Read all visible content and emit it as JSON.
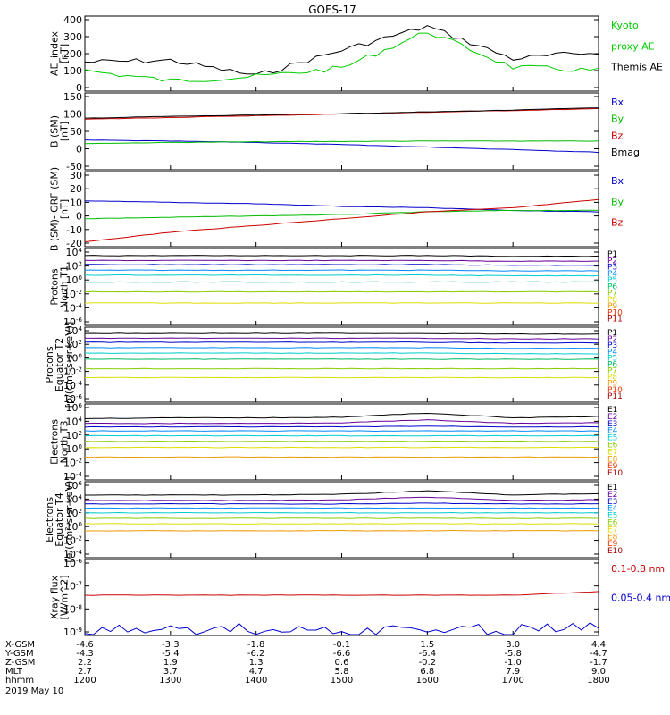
{
  "title": "GOES-17",
  "time_axis": {
    "ticks": [
      "1200",
      "1300",
      "1400",
      "1500",
      "1600",
      "1700",
      "1800"
    ],
    "date": "2019 May 10",
    "rows": [
      {
        "label": "X-GSM",
        "values": [
          "-4.6",
          "-3.3",
          "-1.8",
          "-0.1",
          "1.5",
          "3.0",
          "4.4"
        ]
      },
      {
        "label": "Y-GSM",
        "values": [
          "-4.3",
          "-5.4",
          "-6.2",
          "-6.6",
          "-6.4",
          "-5.8",
          "-4.7"
        ]
      },
      {
        "label": "Z-GSM",
        "values": [
          "2.2",
          "1.9",
          "1.3",
          "0.6",
          "-0.2",
          "-1.0",
          "-1.7"
        ]
      },
      {
        "label": "MLT",
        "values": [
          "2.7",
          "3.7",
          "4.7",
          "5.8",
          "6.8",
          "7.9",
          "9.0"
        ]
      },
      {
        "label": "hhmm",
        "values": [
          "1200",
          "1300",
          "1400",
          "1500",
          "1600",
          "1700",
          "1800"
        ]
      }
    ]
  },
  "panels": [
    {
      "ylabel": [
        "AE_index",
        "[nT]"
      ],
      "ticks": [
        "400",
        "300",
        "200",
        "100",
        "0"
      ],
      "legend": [
        {
          "text": "Kyoto",
          "color": "#00cc00"
        },
        {
          "text": "proxy AE",
          "color": "#00cc00"
        },
        {
          "text": "Themis AE",
          "color": "#000000"
        }
      ]
    },
    {
      "ylabel": [
        "B (SM)",
        "[nT]"
      ],
      "ticks": [
        "150",
        "100",
        "50",
        "0",
        "-50"
      ],
      "legend": [
        {
          "text": "Bx",
          "color": "#0000cc"
        },
        {
          "text": "By",
          "color": "#00bb00"
        },
        {
          "text": "Bz",
          "color": "#cc0000"
        },
        {
          "text": "Bmag",
          "color": "#000000"
        }
      ]
    },
    {
      "ylabel": [
        "B (SM)-IGRF (SM)",
        "[nT]"
      ],
      "ticks": [
        "30",
        "20",
        "10",
        "0",
        "-10",
        "-20"
      ],
      "legend": [
        {
          "text": "Bx",
          "color": "#0000cc"
        },
        {
          "text": "By",
          "color": "#00bb00"
        },
        {
          "text": "Bz",
          "color": "#cc0000"
        }
      ]
    },
    {
      "ylabel": [
        "Protons",
        "North T1"
      ],
      "ticks": [
        "10^4",
        "10^2",
        "10^0",
        "10^-2",
        "10^-4",
        "10^-6"
      ],
      "legend": [
        {
          "text": "P1",
          "color": "#000000"
        },
        {
          "text": "P2",
          "color": "#660099"
        },
        {
          "text": "P3",
          "color": "#0000cc"
        },
        {
          "text": "P4",
          "color": "#0088ff"
        },
        {
          "text": "P5",
          "color": "#00cccc"
        },
        {
          "text": "P6",
          "color": "#00bb66"
        },
        {
          "text": "P7",
          "color": "#88cc00"
        },
        {
          "text": "P8",
          "color": "#dddd00"
        },
        {
          "text": "P9",
          "color": "#ee9900"
        },
        {
          "text": "P10",
          "color": "#ee3300"
        },
        {
          "text": "P11",
          "color": "#aa0000"
        }
      ]
    },
    {
      "ylabel": [
        "Protons",
        "Equator T2",
        "[p/(cm²-s-sr-keV)]"
      ],
      "ticks": [
        "10^4",
        "10^2",
        "10^0",
        "10^-2",
        "10^-4",
        "10^-6"
      ],
      "legend": [
        {
          "text": "P1",
          "color": "#000000"
        },
        {
          "text": "P2",
          "color": "#660099"
        },
        {
          "text": "P3",
          "color": "#0000cc"
        },
        {
          "text": "P4",
          "color": "#0088ff"
        },
        {
          "text": "P5",
          "color": "#00cccc"
        },
        {
          "text": "P6",
          "color": "#00bb66"
        },
        {
          "text": "P7",
          "color": "#88cc00"
        },
        {
          "text": "P8",
          "color": "#dddd00"
        },
        {
          "text": "P9",
          "color": "#ee9900"
        },
        {
          "text": "P10",
          "color": "#ee3300"
        },
        {
          "text": "P11",
          "color": "#aa0000"
        }
      ]
    },
    {
      "ylabel": [
        "Electrons",
        "North T3"
      ],
      "ticks": [
        "10^6",
        "10^4",
        "10^2",
        "10^0",
        "10^-2",
        "10^-4"
      ],
      "legend": [
        {
          "text": "E1",
          "color": "#000000"
        },
        {
          "text": "E2",
          "color": "#660099"
        },
        {
          "text": "E3",
          "color": "#0000cc"
        },
        {
          "text": "E4",
          "color": "#0088ff"
        },
        {
          "text": "E5",
          "color": "#00cccc"
        },
        {
          "text": "E6",
          "color": "#88cc00"
        },
        {
          "text": "E7",
          "color": "#dddd00"
        },
        {
          "text": "E8",
          "color": "#ee9900"
        },
        {
          "text": "E9",
          "color": "#ee3300"
        },
        {
          "text": "E10",
          "color": "#aa0000"
        }
      ]
    },
    {
      "ylabel": [
        "Electrons",
        "Equator T4",
        "[e/(cm²-s-sr-keV)]"
      ],
      "ticks": [
        "10^6",
        "10^4",
        "10^2",
        "10^0",
        "10^-2",
        "10^-4"
      ],
      "legend": [
        {
          "text": "E1",
          "color": "#000000"
        },
        {
          "text": "E2",
          "color": "#660099"
        },
        {
          "text": "E3",
          "color": "#0000cc"
        },
        {
          "text": "E4",
          "color": "#0088ff"
        },
        {
          "text": "E5",
          "color": "#00cccc"
        },
        {
          "text": "E6",
          "color": "#88cc00"
        },
        {
          "text": "E7",
          "color": "#dddd00"
        },
        {
          "text": "E8",
          "color": "#ee9900"
        },
        {
          "text": "E9",
          "color": "#ee3300"
        },
        {
          "text": "E10",
          "color": "#aa0000"
        }
      ]
    },
    {
      "ylabel": [
        "Xray flux",
        "[W/m^2]"
      ],
      "ticks": [
        "10^-6",
        "10^-7",
        "10^-8",
        "10^-9"
      ],
      "legend": [
        {
          "text": "0.1-0.8 nm",
          "color": "#cc0000"
        },
        {
          "text": "0.05-0.4 nm",
          "color": "#0000cc"
        }
      ]
    }
  ],
  "chart_data": [
    {
      "type": "line",
      "x": [
        "1200",
        "1300",
        "1400",
        "1500",
        "1600",
        "1700",
        "1800"
      ],
      "ylabel": "AE_index [nT]",
      "ylim": [
        0,
        400
      ],
      "series": [
        {
          "name": "Themis AE",
          "values": [
            150,
            160,
            70,
            220,
            360,
            170,
            210
          ]
        },
        {
          "name": "Kyoto proxy AE",
          "values": [
            100,
            40,
            65,
            115,
            330,
            120,
            100
          ]
        }
      ]
    },
    {
      "type": "line",
      "x": [
        "1200",
        "1300",
        "1400",
        "1500",
        "1600",
        "1700",
        "1800"
      ],
      "ylabel": "B (SM) [nT]",
      "ylim": [
        -50,
        150
      ],
      "series": [
        {
          "name": "Bx",
          "values": [
            25,
            22,
            18,
            12,
            5,
            -2,
            -10
          ]
        },
        {
          "name": "By",
          "values": [
            15,
            18,
            20,
            21,
            22,
            22,
            22
          ]
        },
        {
          "name": "Bz",
          "values": [
            85,
            90,
            95,
            100,
            105,
            110,
            115
          ]
        },
        {
          "name": "Bmag",
          "values": [
            88,
            93,
            97,
            101,
            106,
            111,
            118
          ]
        }
      ]
    },
    {
      "type": "line",
      "x": [
        "1200",
        "1300",
        "1400",
        "1500",
        "1600",
        "1700",
        "1800"
      ],
      "ylabel": "B (SM)-IGRF (SM) [nT]",
      "ylim": [
        -20,
        30
      ],
      "series": [
        {
          "name": "Bx",
          "values": [
            11,
            10,
            9,
            7,
            6,
            4,
            3
          ]
        },
        {
          "name": "By",
          "values": [
            -2,
            -1,
            0,
            1,
            3,
            4,
            4
          ]
        },
        {
          "name": "Bz",
          "values": [
            -19,
            -12,
            -7,
            -2,
            3,
            6,
            12
          ]
        }
      ]
    },
    {
      "type": "line",
      "x": [
        "1200",
        "1300",
        "1400",
        "1500",
        "1600",
        "1700",
        "1800"
      ],
      "ylabel": "Protons North T1",
      "ylim": [
        "10^-6",
        "10^4"
      ],
      "log": true,
      "series": [
        {
          "name": "P1",
          "values": [
            3.5,
            3.5,
            3.5,
            3.5,
            3.5,
            3.4,
            3.4
          ]
        },
        {
          "name": "P2",
          "values": [
            2.8,
            2.8,
            2.8,
            2.8,
            2.8,
            2.7,
            2.7
          ]
        },
        {
          "name": "P3",
          "values": [
            2.2,
            2.2,
            2.2,
            2.2,
            2.2,
            2.1,
            2.1
          ]
        },
        {
          "name": "P4",
          "values": [
            1.4,
            1.4,
            1.4,
            1.4,
            1.4,
            1.3,
            1.3
          ]
        },
        {
          "name": "P5",
          "values": [
            0.7,
            0.7,
            0.7,
            0.7,
            0.7,
            0.6,
            0.6
          ]
        },
        {
          "name": "P6",
          "values": [
            -0.3,
            -0.3,
            -0.3,
            -0.3,
            -0.3,
            -0.3,
            -0.3
          ]
        },
        {
          "name": "P7",
          "values": [
            -1.7,
            -1.7,
            -1.7,
            -1.7,
            -1.7,
            -1.7,
            -1.7
          ]
        },
        {
          "name": "P8",
          "values": [
            -3.3,
            -3.3,
            -3.3,
            -3.3,
            -3.3,
            -3.3,
            -3.3
          ]
        }
      ]
    },
    {
      "type": "line",
      "x": [
        "1200",
        "1300",
        "1400",
        "1500",
        "1600",
        "1700",
        "1800"
      ],
      "ylabel": "Protons Equator T2",
      "ylim": [
        "10^-6",
        "10^4"
      ],
      "log": true,
      "series": [
        {
          "name": "P1",
          "values": [
            3.6,
            3.6,
            3.6,
            3.6,
            3.6,
            3.5,
            3.5
          ]
        },
        {
          "name": "P2",
          "values": [
            2.9,
            2.9,
            2.9,
            2.9,
            2.9,
            2.8,
            2.8
          ]
        },
        {
          "name": "P3",
          "values": [
            2.3,
            2.3,
            2.3,
            2.3,
            2.3,
            2.2,
            2.2
          ]
        },
        {
          "name": "P4",
          "values": [
            1.5,
            1.5,
            1.5,
            1.5,
            1.5,
            1.4,
            1.4
          ]
        },
        {
          "name": "P5",
          "values": [
            0.7,
            0.7,
            0.7,
            0.7,
            0.7,
            0.6,
            0.6
          ]
        },
        {
          "name": "P6",
          "values": [
            -0.2,
            -0.2,
            -0.2,
            -0.2,
            -0.2,
            -0.2,
            -0.2
          ]
        },
        {
          "name": "P7",
          "values": [
            -1.6,
            -1.6,
            -1.6,
            -1.6,
            -1.6,
            -1.6,
            -1.6
          ]
        },
        {
          "name": "P8",
          "values": [
            -2.9,
            -2.9,
            -2.9,
            -2.9,
            -2.9,
            -2.9,
            -2.9
          ]
        }
      ]
    },
    {
      "type": "line",
      "x": [
        "1200",
        "1300",
        "1400",
        "1500",
        "1600",
        "1700",
        "1800"
      ],
      "ylabel": "Electrons North T3",
      "ylim": [
        "10^-4",
        "10^6"
      ],
      "log": true,
      "series": [
        {
          "name": "E1",
          "values": [
            4.4,
            4.5,
            4.5,
            4.6,
            5.2,
            4.5,
            4.7
          ]
        },
        {
          "name": "E2",
          "values": [
            3.7,
            3.7,
            3.7,
            3.8,
            4.2,
            3.7,
            3.8
          ]
        },
        {
          "name": "E3",
          "values": [
            3.2,
            3.2,
            3.2,
            3.2,
            3.3,
            3.2,
            3.2
          ]
        },
        {
          "name": "E4",
          "values": [
            2.6,
            2.6,
            2.6,
            2.6,
            2.6,
            2.6,
            2.6
          ]
        },
        {
          "name": "E5",
          "values": [
            1.9,
            1.9,
            1.9,
            1.9,
            1.9,
            1.9,
            1.9
          ]
        },
        {
          "name": "E6",
          "values": [
            1.1,
            1.1,
            1.1,
            1.1,
            1.1,
            1.1,
            1.1
          ]
        },
        {
          "name": "E7",
          "values": [
            0.2,
            0.2,
            0.2,
            0.2,
            0.2,
            0.2,
            0.2
          ]
        },
        {
          "name": "E8",
          "values": [
            -1.2,
            -1.2,
            -1.2,
            -1.2,
            -1.2,
            -1.2,
            -1.2
          ]
        }
      ]
    },
    {
      "type": "line",
      "x": [
        "1200",
        "1300",
        "1400",
        "1500",
        "1600",
        "1700",
        "1800"
      ],
      "ylabel": "Electrons Equator T4",
      "ylim": [
        "10^-4",
        "10^6"
      ],
      "log": true,
      "series": [
        {
          "name": "E1",
          "values": [
            4.6,
            4.6,
            4.6,
            4.7,
            5.2,
            4.6,
            4.8
          ]
        },
        {
          "name": "E2",
          "values": [
            3.8,
            3.8,
            3.8,
            3.9,
            4.3,
            3.8,
            3.9
          ]
        },
        {
          "name": "E3",
          "values": [
            3.3,
            3.3,
            3.3,
            3.3,
            3.4,
            3.3,
            3.3
          ]
        },
        {
          "name": "E4",
          "values": [
            2.7,
            2.7,
            2.7,
            2.7,
            2.7,
            2.7,
            2.7
          ]
        },
        {
          "name": "E5",
          "values": [
            2.0,
            2.0,
            2.0,
            2.0,
            2.0,
            2.0,
            2.0
          ]
        },
        {
          "name": "E6",
          "values": [
            1.2,
            1.2,
            1.2,
            1.2,
            1.2,
            1.2,
            1.2
          ]
        },
        {
          "name": "E7",
          "values": [
            0.4,
            0.4,
            0.4,
            0.4,
            0.4,
            0.4,
            0.4
          ]
        },
        {
          "name": "E8",
          "values": [
            -0.6,
            -0.6,
            -0.6,
            -0.6,
            -0.6,
            -0.6,
            -0.6
          ]
        }
      ]
    },
    {
      "type": "line",
      "x": [
        "1200",
        "1300",
        "1400",
        "1500",
        "1600",
        "1700",
        "1800"
      ],
      "ylabel": "Xray flux [W/m^2]",
      "ylim": [
        "10^-9",
        "10^-6"
      ],
      "log": true,
      "series": [
        {
          "name": "0.1-0.8 nm",
          "values": [
            -7.4,
            -7.4,
            -7.4,
            -7.4,
            -7.4,
            -7.4,
            -7.25
          ]
        },
        {
          "name": "0.05-0.4 nm",
          "values": [
            -8.9,
            -8.85,
            -8.9,
            -8.95,
            -8.9,
            -8.9,
            -8.7
          ]
        }
      ]
    }
  ]
}
